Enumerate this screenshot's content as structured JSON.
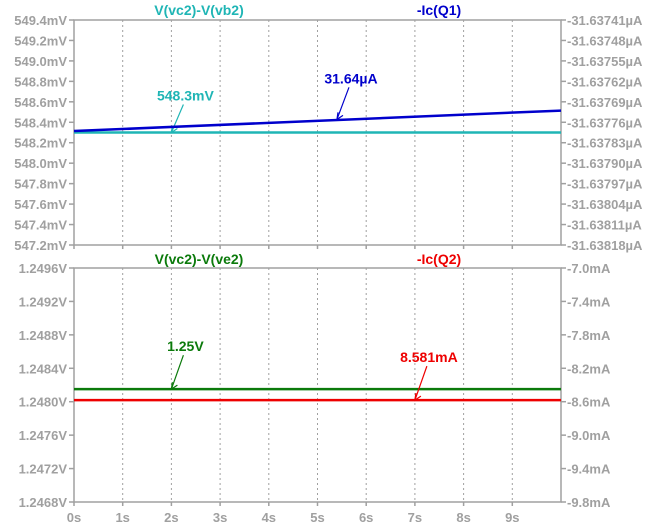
{
  "colors": {
    "tick": "#a0a0a0",
    "cyan": "#1fb5b5",
    "blue": "#0000cc",
    "green": "#0b7a0b",
    "red": "#ee0000"
  },
  "chart_data": [
    {
      "type": "line",
      "x_ticks": [
        "0s",
        "1s",
        "2s",
        "3s",
        "4s",
        "5s",
        "6s",
        "7s",
        "8s",
        "9s"
      ],
      "xlim": [
        0,
        10
      ],
      "left_axis": {
        "ylim": [
          547.2,
          549.4
        ],
        "tick_values": [
          549.4,
          549.2,
          549.0,
          548.8,
          548.6,
          548.4,
          548.2,
          548.0,
          547.8,
          547.6,
          547.4,
          547.2
        ],
        "tick_labels": [
          "549.4mV",
          "549.2mV",
          "549.0mV",
          "548.8mV",
          "548.6mV",
          "548.4mV",
          "548.2mV",
          "548.0mV",
          "547.8mV",
          "547.6mV",
          "547.4mV",
          "547.2mV"
        ]
      },
      "right_axis": {
        "ylim": [
          -31.63818,
          -31.63741
        ],
        "tick_values": [
          -31.63741,
          -31.63748,
          -31.63755,
          -31.63762,
          -31.63769,
          -31.63776,
          -31.63783,
          -31.6379,
          -31.63797,
          -31.63804,
          -31.63811,
          -31.63818
        ],
        "tick_labels": [
          "-31.63741µA",
          "-31.63748µA",
          "-31.63755µA",
          "-31.63762µA",
          "-31.63769µA",
          "-31.63776µA",
          "-31.63783µA",
          "-31.63790µA",
          "-31.63797µA",
          "-31.63804µA",
          "-31.63811µA",
          "-31.63818µA"
        ]
      },
      "series": [
        {
          "name": "V(vc2)-V(vb2)",
          "axis": "left",
          "color": "#1fb5b5",
          "x": [
            0,
            10
          ],
          "y": [
            548.3,
            548.3
          ],
          "annotation": {
            "text": "548.3mV",
            "x": 2.0,
            "y": 548.3
          }
        },
        {
          "name": "-Ic(Q1)",
          "axis": "right",
          "color": "#0000cc",
          "x": [
            0,
            10
          ],
          "y": [
            -31.63779,
            -31.63772
          ],
          "annotation": {
            "text": "31.64µA",
            "x": 5.4,
            "y": -31.63775
          }
        }
      ]
    },
    {
      "type": "line",
      "x_ticks": [
        "0s",
        "1s",
        "2s",
        "3s",
        "4s",
        "5s",
        "6s",
        "7s",
        "8s",
        "9s"
      ],
      "xlim": [
        0,
        10
      ],
      "left_axis": {
        "ylim": [
          1.2468,
          1.2496
        ],
        "tick_values": [
          1.2496,
          1.2492,
          1.2488,
          1.2484,
          1.248,
          1.2476,
          1.2472,
          1.2468
        ],
        "tick_labels": [
          "1.2496V",
          "1.2492V",
          "1.2488V",
          "1.2484V",
          "1.2480V",
          "1.2476V",
          "1.2472V",
          "1.2468V"
        ]
      },
      "right_axis": {
        "ylim": [
          -9.8,
          -7.0
        ],
        "tick_values": [
          -7.0,
          -7.4,
          -7.8,
          -8.2,
          -8.6,
          -9.0,
          -9.4,
          -9.8
        ],
        "tick_labels": [
          "-7.0mA",
          "-7.4mA",
          "-7.8mA",
          "-8.2mA",
          "-8.6mA",
          "-9.0mA",
          "-9.4mA",
          "-9.8mA"
        ]
      },
      "series": [
        {
          "name": "V(vc2)-V(ve2)",
          "axis": "left",
          "color": "#0b7a0b",
          "x": [
            0,
            10
          ],
          "y": [
            1.24815,
            1.24815
          ],
          "annotation": {
            "text": "1.25V",
            "x": 2.0,
            "y": 1.24815
          }
        },
        {
          "name": "-Ic(Q2)",
          "axis": "right",
          "color": "#ee0000",
          "x": [
            0,
            10
          ],
          "y": [
            -8.581,
            -8.581
          ],
          "annotation": {
            "text": "8.581mA",
            "x": 7.0,
            "y": -8.581
          }
        }
      ]
    }
  ]
}
